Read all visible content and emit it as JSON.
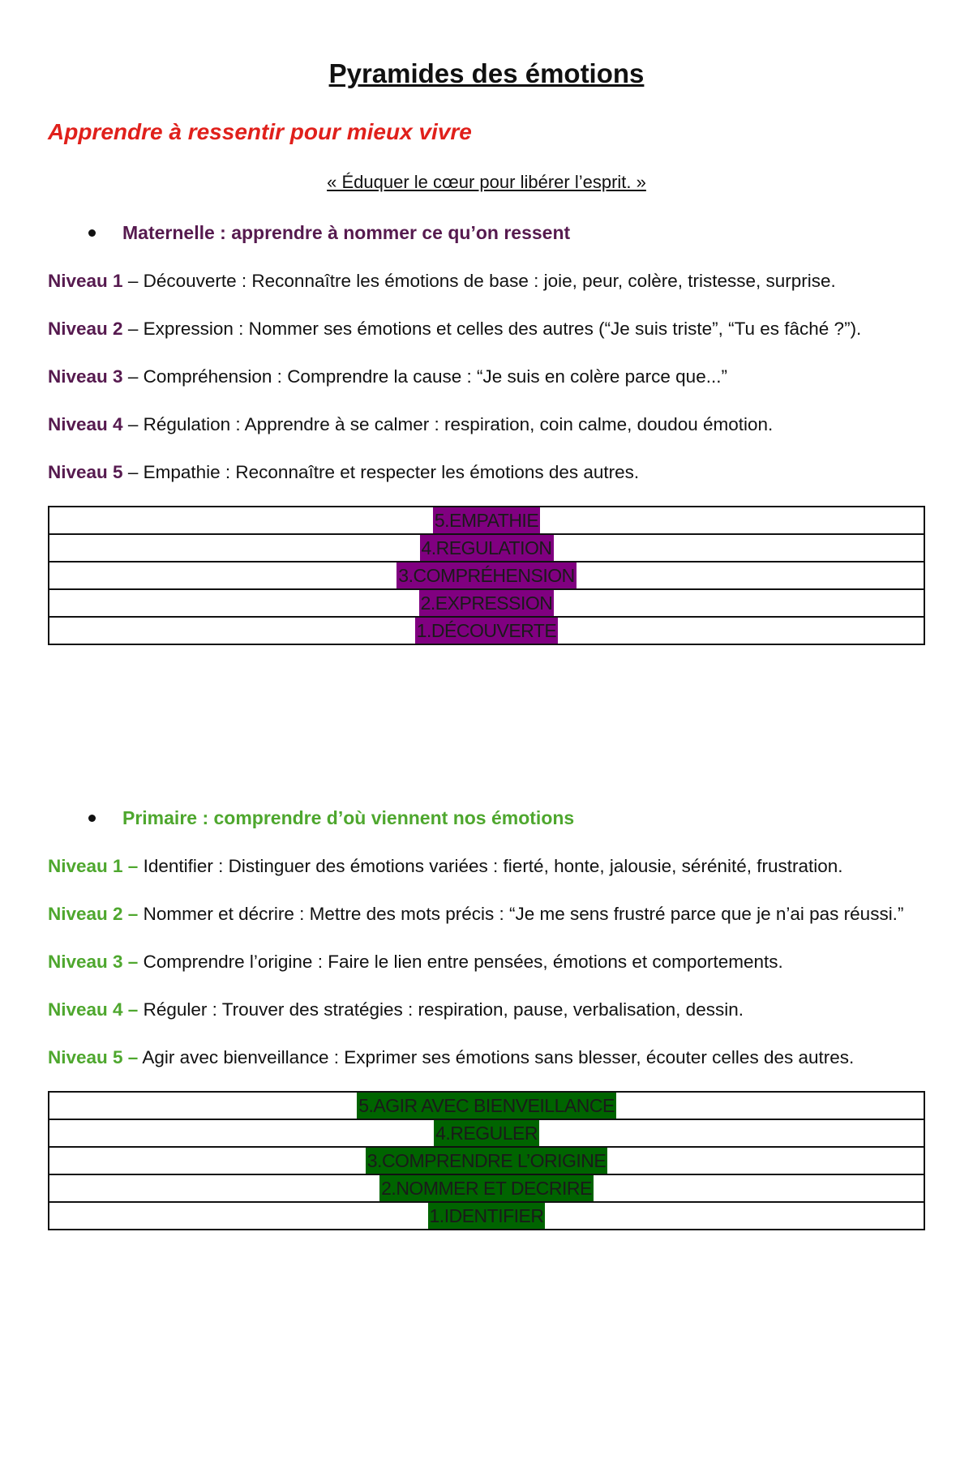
{
  "title": "Pyramides des émotions",
  "subtitle": "Apprendre à ressentir pour mieux vivre",
  "quote": "« Éduquer le cœur pour libérer l’esprit. »",
  "colors": {
    "subtitle": "#e0201b",
    "maternelle": "#561a4f",
    "primaire": "#4ea72e",
    "maternelle_highlight": "#800080",
    "primaire_highlight": "#006400"
  },
  "sections": [
    {
      "heading": "Maternelle : apprendre à nommer ce qu’on ressent",
      "levels": [
        {
          "label": "Niveau 1",
          "sep": " – ",
          "text": "Découverte : Reconnaître les émotions de base : joie, peur, colère, tristesse, surprise."
        },
        {
          "label": "Niveau 2",
          "sep": " – ",
          "text": "Expression : Nommer ses émotions et celles des autres (“Je suis triste”, “Tu es fâché ?”)."
        },
        {
          "label": "Niveau 3",
          "sep": " – ",
          "text": "Compréhension : Comprendre la cause : “Je suis en colère parce que...”"
        },
        {
          "label": "Niveau 4",
          "sep": " – ",
          "text": "Régulation : Apprendre à se calmer : respiration, coin calme, doudou émotion."
        },
        {
          "label": "Niveau 5",
          "sep": " – ",
          "text": "Empathie : Reconnaître et respecter les émotions des autres."
        }
      ],
      "pyramid": [
        "5.EMPATHIE",
        "4.REGULATION",
        "3.COMPRÉHENSION",
        "2.EXPRESSION",
        "1.DÉCOUVERTE"
      ]
    },
    {
      "heading": "Primaire : comprendre d’où viennent nos émotions",
      "levels": [
        {
          "label": "Niveau 1 –",
          "sep": " ",
          "text": "Identifier : Distinguer des émotions variées : fierté, honte, jalousie, sérénité, frustration."
        },
        {
          "label": "Niveau 2 –",
          "sep": " ",
          "text": "Nommer et décrire : Mettre des mots précis : “Je me sens frustré parce que je n’ai pas réussi.”"
        },
        {
          "label": "Niveau 3 –",
          "sep": " ",
          "text": "Comprendre l’origine : Faire le lien entre pensées, émotions et comportements."
        },
        {
          "label": "Niveau 4 –",
          "sep": " ",
          "text": "Réguler : Trouver des stratégies : respiration, pause, verbalisation, dessin."
        },
        {
          "label": "Niveau 5 –",
          "sep": " ",
          "text": "Agir avec bienveillance : Exprimer ses émotions sans blesser, écouter celles des autres."
        }
      ],
      "pyramid": [
        "5.AGIR AVEC BIENVEILLANCE",
        "4.REGULER",
        "3.COMPRENDRE L’ORIGINE",
        "2.NOMMER ET DECRIRE",
        "1.IDENTIFIER"
      ]
    }
  ]
}
